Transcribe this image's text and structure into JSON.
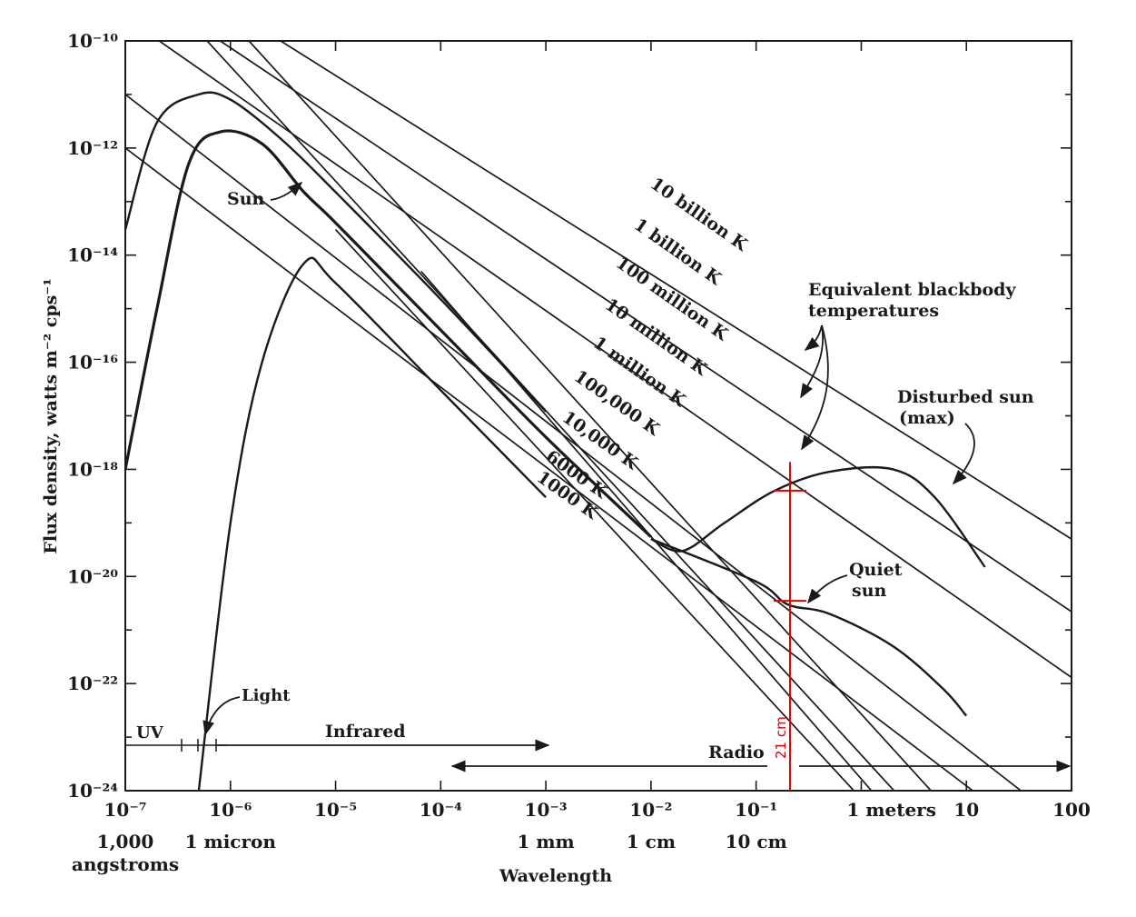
{
  "chart_data": {
    "type": "line",
    "xscale": "log",
    "yscale": "log",
    "xlim": [
      1e-07,
      100
    ],
    "ylim": [
      1e-24,
      1e-10
    ],
    "xlabel": "Wavelength",
    "ylabel": "Flux density, watts m⁻² cps⁻¹",
    "x_ticks": [
      {
        "value": 1e-07,
        "label": "10⁻⁷",
        "sub": [
          "1,000",
          "angstroms"
        ]
      },
      {
        "value": 1e-06,
        "label": "10⁻⁶",
        "sub": [
          "1 micron"
        ]
      },
      {
        "value": 1e-05,
        "label": "10⁻⁵",
        "sub": []
      },
      {
        "value": 0.0001,
        "label": "10⁻⁴",
        "sub": []
      },
      {
        "value": 0.001,
        "label": "10⁻³",
        "sub": [
          "1 mm"
        ]
      },
      {
        "value": 0.01,
        "label": "10⁻²",
        "sub": [
          "1 cm"
        ]
      },
      {
        "value": 0.1,
        "label": "10⁻¹",
        "sub": [
          "10 cm"
        ]
      },
      {
        "value": 1,
        "label": "1  meters",
        "sub": []
      },
      {
        "value": 10,
        "label": "10",
        "sub": []
      },
      {
        "value": 100,
        "label": "100",
        "sub": []
      }
    ],
    "y_ticks": [
      {
        "value": 1e-10,
        "label": "10⁻¹⁰"
      },
      {
        "value": 1e-12,
        "label": "10⁻¹²"
      },
      {
        "value": 1e-14,
        "label": "10⁻¹⁴"
      },
      {
        "value": 1e-16,
        "label": "10⁻¹⁶"
      },
      {
        "value": 1e-18,
        "label": "10⁻¹⁸"
      },
      {
        "value": 1e-20,
        "label": "10⁻²⁰"
      },
      {
        "value": 1e-22,
        "label": "10⁻²²"
      },
      {
        "value": 1e-24,
        "label": "10⁻²⁴"
      }
    ],
    "blackbody_lines": [
      {
        "name": "10 billion K",
        "start": [
          3e-06,
          1e-10
        ],
        "end": [
          100,
          5e-20
        ]
      },
      {
        "name": "1 billion K",
        "start": [
          8e-07,
          1e-10
        ],
        "end": [
          100,
          2.2e-21
        ]
      },
      {
        "name": "100 million K",
        "start": [
          2.1e-07,
          1e-10
        ],
        "end": [
          100,
          1.3e-22
        ]
      },
      {
        "name": "10 million K",
        "start": [
          1e-07,
          1e-11
        ],
        "end": [
          33,
          1e-24
        ]
      },
      {
        "name": "1 million K",
        "start": [
          1e-07,
          1e-12
        ],
        "end": [
          11.5,
          1e-24
        ]
      },
      {
        "name": "100,000 K",
        "start": [
          1.5e-06,
          1e-10
        ],
        "end": [
          4.6,
          1e-24
        ]
      },
      {
        "name": "10,000 K",
        "start": [
          6e-07,
          1e-10
        ],
        "end": [
          2.05,
          1e-24
        ]
      },
      {
        "name": "6000 K",
        "start": [
          6.5e-05,
          5e-15
        ],
        "end": [
          1.25,
          1e-24
        ]
      },
      {
        "name": "1000 K",
        "start": [
          1e-05,
          3e-14
        ],
        "end": [
          0.85,
          1e-24
        ]
      }
    ],
    "series": [
      {
        "name": "Sun (upper envelope)",
        "points": [
          [
            1e-07,
            3e-14
          ],
          [
            2e-07,
            3e-12
          ],
          [
            5e-07,
            1e-11
          ],
          [
            1e-06,
            8e-12
          ],
          [
            3e-06,
            1.5e-12
          ],
          [
            1e-05,
            1.5e-13
          ],
          [
            0.0001,
            1.5e-15
          ],
          [
            0.001,
            1.2e-17
          ]
        ]
      },
      {
        "name": "Sun",
        "points": [
          [
            1e-07,
            1e-18
          ],
          [
            2e-07,
            1e-15
          ],
          [
            4e-07,
            5e-13
          ],
          [
            8e-07,
            2e-12
          ],
          [
            2e-06,
            1.2e-12
          ],
          [
            5e-06,
            1.5e-13
          ],
          [
            1e-05,
            4e-14
          ],
          [
            0.0001,
            4e-16
          ],
          [
            0.001,
            4e-18
          ],
          [
            0.01,
            5.5e-20
          ]
        ]
      },
      {
        "name": "1000 K body",
        "points": [
          [
            5e-07,
            1e-24
          ],
          [
            1e-06,
            1e-19
          ],
          [
            2e-06,
            1e-16
          ],
          [
            5e-06,
            7e-15
          ],
          [
            1e-05,
            3e-15
          ],
          [
            0.0001,
            3e-17
          ],
          [
            0.001,
            3e-19
          ]
        ]
      },
      {
        "name": "Disturbed sun (max)",
        "points": [
          [
            0.01,
            5e-20
          ],
          [
            0.02,
            3e-20
          ],
          [
            0.05,
            1e-19
          ],
          [
            0.15,
            4e-19
          ],
          [
            0.5,
            9e-19
          ],
          [
            2,
            1e-18
          ],
          [
            5,
            3e-19
          ],
          [
            15,
            1.5e-20
          ]
        ]
      },
      {
        "name": "Quiet sun",
        "points": [
          [
            0.01,
            5e-20
          ],
          [
            0.1,
            8e-21
          ],
          [
            0.2,
            3e-21
          ],
          [
            0.5,
            2e-21
          ],
          [
            2,
            5e-22
          ],
          [
            6,
            8e-23
          ],
          [
            10,
            2.5e-23
          ]
        ]
      }
    ],
    "region_labels": {
      "uv": "UV",
      "light": "Light",
      "infrared": "Infrared",
      "radio": "Radio"
    },
    "annotations": {
      "sun": "Sun",
      "equivalent": [
        "Equivalent blackbody",
        "temperatures"
      ],
      "disturbed": [
        "Disturbed sun",
        "(max)"
      ],
      "quiet": [
        "Quiet",
        "sun"
      ],
      "marker_label": "21 cm",
      "marker_wavelength_m": 0.21,
      "marker_flux_high": 4e-19,
      "marker_flux_low": 3.5e-21
    }
  }
}
